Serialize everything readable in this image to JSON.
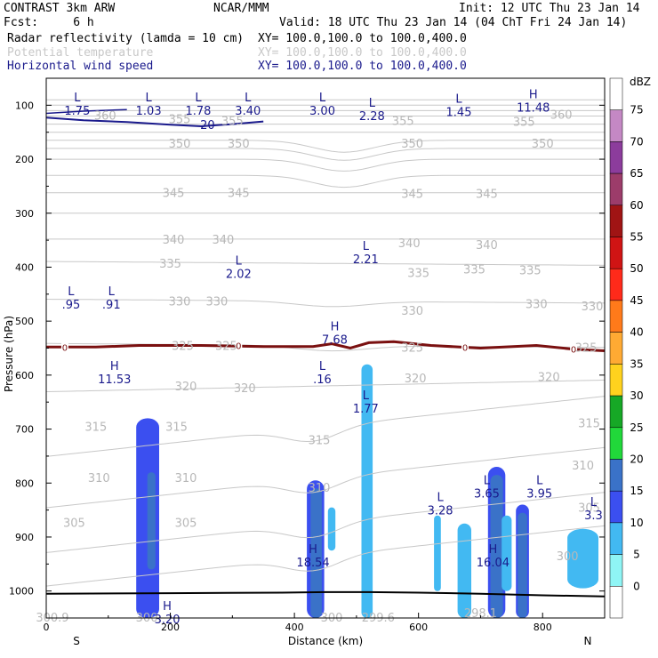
{
  "header": {
    "line1_left": "CONTRAST  3km ARW",
    "line1_mid": "NCAR/MMM",
    "line1_right": "Init: 12 UTC Thu 23 Jan 14",
    "line2_left": "Fcst:     6 h",
    "line2_right": "Valid: 18 UTC Thu 23 Jan 14 (04 ChT Fri 24 Jan 14)",
    "field1": "Radar reflectivity (lamda = 10 cm)",
    "field1_xy": "XY= 100.0,100.0 to 100.0,400.0",
    "field2": "Potential temperature",
    "field2_xy": "XY= 100.0,100.0 to 100.0,400.0",
    "field3": "Horizontal wind speed",
    "field3_xy": "XY= 100.0,100.0 to 100.0,400.0"
  },
  "colors": {
    "reflectivity_field": "#000000",
    "theta_field": "#c8c8c8",
    "wind_field": "#1a1a8c",
    "freezing": "#7a1010",
    "terrain": "#000000"
  },
  "chart_data": {
    "type": "cross-section",
    "xlabel": "Distance (km)",
    "ylabel": "Pressure (hPa)",
    "xlim": [
      0,
      900
    ],
    "ylim": [
      1050,
      50
    ],
    "xticks": [
      0,
      200,
      400,
      600,
      800
    ],
    "yticks": [
      100,
      200,
      300,
      400,
      500,
      600,
      700,
      800,
      900,
      1000
    ],
    "endpoint_left": "S",
    "endpoint_right": "N",
    "colorbar": {
      "unit": "dBZ",
      "levels": [
        0,
        5,
        10,
        15,
        20,
        25,
        30,
        35,
        40,
        45,
        50,
        55,
        60,
        65,
        70,
        75
      ],
      "colors": [
        "#ffffff",
        "#8ff5f5",
        "#42b9f2",
        "#3b4ff0",
        "#3a72c8",
        "#21d83a",
        "#16a826",
        "#ffd21e",
        "#ffaa33",
        "#ff7a1a",
        "#ff2a1a",
        "#d01414",
        "#a01414",
        "#9c3c6a",
        "#8c3c9c",
        "#c488c4",
        "#ffffff"
      ]
    },
    "theta_labels": [
      {
        "x": 95,
        "p": 118,
        "t": "360"
      },
      {
        "x": 215,
        "p": 125,
        "t": "355"
      },
      {
        "x": 830,
        "p": 117,
        "t": "360"
      },
      {
        "x": 300,
        "p": 128,
        "t": "355"
      },
      {
        "x": 575,
        "p": 128,
        "t": "355"
      },
      {
        "x": 770,
        "p": 130,
        "t": "355"
      },
      {
        "x": 215,
        "p": 170,
        "t": "350"
      },
      {
        "x": 310,
        "p": 170,
        "t": "350"
      },
      {
        "x": 590,
        "p": 170,
        "t": "350"
      },
      {
        "x": 800,
        "p": 170,
        "t": "350"
      },
      {
        "x": 205,
        "p": 262,
        "t": "345"
      },
      {
        "x": 310,
        "p": 262,
        "t": "345"
      },
      {
        "x": 590,
        "p": 263,
        "t": "345"
      },
      {
        "x": 710,
        "p": 263,
        "t": "345"
      },
      {
        "x": 205,
        "p": 348,
        "t": "340"
      },
      {
        "x": 285,
        "p": 348,
        "t": "340"
      },
      {
        "x": 585,
        "p": 355,
        "t": "340"
      },
      {
        "x": 710,
        "p": 358,
        "t": "340"
      },
      {
        "x": 200,
        "p": 393,
        "t": "335"
      },
      {
        "x": 600,
        "p": 410,
        "t": "335"
      },
      {
        "x": 690,
        "p": 403,
        "t": "335"
      },
      {
        "x": 780,
        "p": 405,
        "t": "335"
      },
      {
        "x": 215,
        "p": 463,
        "t": "330"
      },
      {
        "x": 275,
        "p": 463,
        "t": "330"
      },
      {
        "x": 590,
        "p": 480,
        "t": "330"
      },
      {
        "x": 790,
        "p": 468,
        "t": "330"
      },
      {
        "x": 880,
        "p": 472,
        "t": "330"
      },
      {
        "x": 220,
        "p": 545,
        "t": "325"
      },
      {
        "x": 290,
        "p": 545,
        "t": "325"
      },
      {
        "x": 590,
        "p": 548,
        "t": "325"
      },
      {
        "x": 870,
        "p": 548,
        "t": "325"
      },
      {
        "x": 225,
        "p": 620,
        "t": "320"
      },
      {
        "x": 320,
        "p": 623,
        "t": "320"
      },
      {
        "x": 595,
        "p": 605,
        "t": "320"
      },
      {
        "x": 810,
        "p": 603,
        "t": "320"
      },
      {
        "x": 80,
        "p": 695,
        "t": "315"
      },
      {
        "x": 210,
        "p": 695,
        "t": "315"
      },
      {
        "x": 440,
        "p": 720,
        "t": "315"
      },
      {
        "x": 875,
        "p": 688,
        "t": "315"
      },
      {
        "x": 85,
        "p": 790,
        "t": "310"
      },
      {
        "x": 225,
        "p": 790,
        "t": "310"
      },
      {
        "x": 440,
        "p": 808,
        "t": "310"
      },
      {
        "x": 865,
        "p": 767,
        "t": "310"
      },
      {
        "x": 45,
        "p": 873,
        "t": "305"
      },
      {
        "x": 225,
        "p": 873,
        "t": "305"
      },
      {
        "x": 875,
        "p": 845,
        "t": "305"
      },
      {
        "x": 840,
        "p": 935,
        "t": "300"
      },
      {
        "x": 10,
        "p": 1048,
        "t": "300.9"
      },
      {
        "x": 165,
        "p": 1048,
        "t": "300."
      },
      {
        "x": 460,
        "p": 1048,
        "t": "300"
      },
      {
        "x": 535,
        "p": 1048,
        "t": "299.6"
      },
      {
        "x": 700,
        "p": 1040,
        "t": "298.1"
      }
    ],
    "extrema": [
      {
        "x": 50,
        "p": 98,
        "s": "L",
        "v": "1.75"
      },
      {
        "x": 165,
        "p": 98,
        "s": "L",
        "v": "1.03"
      },
      {
        "x": 245,
        "p": 98,
        "s": "L",
        "v": "1.78"
      },
      {
        "x": 325,
        "p": 98,
        "s": "L",
        "v": "3.40"
      },
      {
        "x": 445,
        "p": 98,
        "s": "L",
        "v": "3.00"
      },
      {
        "x": 525,
        "p": 108,
        "s": "L",
        "v": "2.28"
      },
      {
        "x": 665,
        "p": 100,
        "s": "L",
        "v": "1.45"
      },
      {
        "x": 785,
        "p": 92,
        "s": "H",
        "v": "11.48"
      },
      {
        "x": 310,
        "p": 400,
        "s": "L",
        "v": "2.02"
      },
      {
        "x": 515,
        "p": 373,
        "s": "L",
        "v": "2.21"
      },
      {
        "x": 40,
        "p": 457,
        "s": "L",
        "v": ".95"
      },
      {
        "x": 105,
        "p": 457,
        "s": "L",
        "v": ".91"
      },
      {
        "x": 465,
        "p": 522,
        "s": "H",
        "v": "7.68"
      },
      {
        "x": 110,
        "p": 595,
        "s": "H",
        "v": "11.53"
      },
      {
        "x": 445,
        "p": 595,
        "s": "L",
        "v": ".16"
      },
      {
        "x": 515,
        "p": 650,
        "s": "L",
        "v": "1.77"
      },
      {
        "x": 635,
        "p": 838,
        "s": "L",
        "v": "3.28"
      },
      {
        "x": 710,
        "p": 807,
        "s": "L",
        "v": "3.65"
      },
      {
        "x": 795,
        "p": 807,
        "s": "L",
        "v": "3.95"
      },
      {
        "x": 882,
        "p": 847,
        "s": "L",
        "v": "3.3"
      },
      {
        "x": 430,
        "p": 935,
        "s": "H",
        "v": "18.54"
      },
      {
        "x": 720,
        "p": 935,
        "s": "H",
        "v": "16.04"
      },
      {
        "x": 195,
        "p": 1040,
        "s": "H",
        "v": "3.20"
      }
    ],
    "freezing_labels": [
      {
        "x": 30,
        "p": 548,
        "t": "0"
      },
      {
        "x": 310,
        "p": 545,
        "t": "0"
      },
      {
        "x": 675,
        "p": 548,
        "t": "0"
      },
      {
        "x": 850,
        "p": 552,
        "t": "0"
      }
    ],
    "jet_label": {
      "x": 260,
      "p": 137,
      "t": "20"
    },
    "reflectivity_cells": [
      {
        "x0": 145,
        "x1": 182,
        "p0": 680,
        "p1": 1060,
        "dbz": 10
      },
      {
        "x0": 148,
        "x1": 179,
        "p0": 690,
        "p1": 1060,
        "dbz": 10
      },
      {
        "x0": 163,
        "x1": 176,
        "p0": 780,
        "p1": 960,
        "dbz": 15
      },
      {
        "x0": 420,
        "x1": 448,
        "p0": 795,
        "p1": 1060,
        "dbz": 10
      },
      {
        "x0": 426,
        "x1": 444,
        "p0": 810,
        "p1": 1060,
        "dbz": 15
      },
      {
        "x0": 454,
        "x1": 466,
        "p0": 845,
        "p1": 925,
        "dbz": 5
      },
      {
        "x0": 508,
        "x1": 526,
        "p0": 580,
        "p1": 1060,
        "dbz": 5
      },
      {
        "x0": 625,
        "x1": 636,
        "p0": 860,
        "p1": 1000,
        "dbz": 5
      },
      {
        "x0": 663,
        "x1": 685,
        "p0": 875,
        "p1": 1060,
        "dbz": 5
      },
      {
        "x0": 712,
        "x1": 740,
        "p0": 770,
        "p1": 1060,
        "dbz": 10
      },
      {
        "x0": 716,
        "x1": 736,
        "p0": 785,
        "p1": 1060,
        "dbz": 15
      },
      {
        "x0": 734,
        "x1": 750,
        "p0": 860,
        "p1": 1000,
        "dbz": 5
      },
      {
        "x0": 757,
        "x1": 778,
        "p0": 840,
        "p1": 1060,
        "dbz": 10
      },
      {
        "x0": 760,
        "x1": 775,
        "p0": 855,
        "p1": 1060,
        "dbz": 15
      },
      {
        "x0": 840,
        "x1": 890,
        "p0": 885,
        "p1": 995,
        "dbz": 5
      }
    ]
  }
}
